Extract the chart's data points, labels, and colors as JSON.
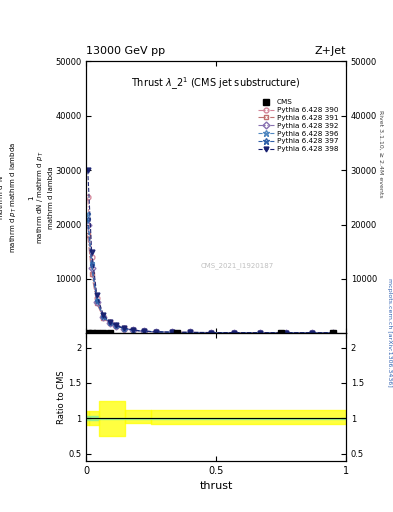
{
  "title_top": "13000 GeV pp",
  "title_right": "Z+Jet",
  "plot_title": "Thrust $\\lambda$_2$^{1}$ (CMS jet substructure)",
  "xlabel": "thrust",
  "ylabel_ratio": "Ratio to CMS",
  "right_label1": "Rivet 3.1.10, ≥ 2.4M events",
  "right_label2": "mcplots.cern.ch [arXiv:1306.3436]",
  "watermark": "CMS_2021_I1920187",
  "legend_entries": [
    {
      "label": "CMS",
      "color": "black",
      "marker": "s",
      "mec": "black",
      "mfc": "black",
      "ls": "none",
      "lw": 0
    },
    {
      "label": "Pythia 6.428 390",
      "color": "#d4869a",
      "marker": "o",
      "mec": "#d4869a",
      "mfc": "none",
      "ls": "-.",
      "lw": 0.8
    },
    {
      "label": "Pythia 6.428 391",
      "color": "#c07070",
      "marker": "s",
      "mec": "#c07070",
      "mfc": "none",
      "ls": "-.",
      "lw": 0.8
    },
    {
      "label": "Pythia 6.428 392",
      "color": "#8870b0",
      "marker": "D",
      "mec": "#8870b0",
      "mfc": "none",
      "ls": "-.",
      "lw": 0.8
    },
    {
      "label": "Pythia 6.428 396",
      "color": "#5088c0",
      "marker": "*",
      "mec": "#5088c0",
      "mfc": "none",
      "ls": "--",
      "lw": 0.8
    },
    {
      "label": "Pythia 6.428 397",
      "color": "#3060a8",
      "marker": "*",
      "mec": "#3060a8",
      "mfc": "none",
      "ls": "--",
      "lw": 0.8
    },
    {
      "label": "Pythia 6.428 398",
      "color": "#182070",
      "marker": "v",
      "mec": "#182070",
      "mfc": "#182070",
      "ls": "--",
      "lw": 0.8
    }
  ],
  "thrust_x": [
    0.005,
    0.02,
    0.04,
    0.065,
    0.09,
    0.115,
    0.145,
    0.18,
    0.22,
    0.27,
    0.33,
    0.4,
    0.48,
    0.57,
    0.67,
    0.77,
    0.87,
    0.95
  ],
  "cms_x": [
    0.005,
    0.02,
    0.04,
    0.065,
    0.09,
    0.35,
    0.75,
    0.95
  ],
  "cms_y": [
    0.2,
    0.2,
    0.2,
    0.2,
    0.2,
    0.2,
    0.2,
    0.2
  ],
  "pythia390_y": [
    25000,
    14000,
    6500,
    3200,
    2000,
    1400,
    900,
    600,
    400,
    280,
    200,
    165,
    145,
    130,
    120,
    115,
    112,
    110
  ],
  "pythia391_y": [
    18000,
    11000,
    5500,
    2900,
    1850,
    1300,
    860,
    580,
    385,
    275,
    198,
    162,
    142,
    128,
    118,
    113,
    110,
    108
  ],
  "pythia392_y": [
    20000,
    12000,
    5800,
    3000,
    1900,
    1340,
    880,
    590,
    390,
    278,
    200,
    163,
    143,
    129,
    119,
    114,
    111,
    109
  ],
  "pythia396_y": [
    22000,
    13000,
    6200,
    3100,
    1950,
    1370,
    890,
    595,
    395,
    280,
    202,
    164,
    144,
    130,
    120,
    115,
    112,
    110
  ],
  "pythia397_y": [
    21000,
    12500,
    6000,
    3050,
    1920,
    1355,
    885,
    592,
    392,
    279,
    201,
    163,
    143,
    129,
    119,
    114,
    111,
    109
  ],
  "pythia398_y": [
    30000,
    15000,
    7000,
    3400,
    2100,
    1450,
    930,
    620,
    410,
    285,
    205,
    167,
    147,
    132,
    122,
    117,
    113,
    111
  ],
  "ylim_main": [
    0,
    50000
  ],
  "yticks_main": [
    10000,
    20000,
    30000,
    40000,
    50000
  ],
  "ytick_labels_main": [
    "10000",
    "20000",
    "30000",
    "40000",
    "50000"
  ],
  "ratio_edges": [
    0.0,
    0.01,
    0.05,
    0.15,
    0.25,
    1.0
  ],
  "green_lo": [
    0.97,
    0.97,
    0.99,
    0.99,
    0.99
  ],
  "green_hi": [
    1.03,
    1.03,
    1.01,
    1.01,
    1.01
  ],
  "yellow_lo": [
    0.9,
    0.9,
    0.75,
    0.93,
    0.92
  ],
  "yellow_hi": [
    1.1,
    1.1,
    1.25,
    1.12,
    1.12
  ],
  "ylim_ratio": [
    0.4,
    2.2
  ],
  "yticks_ratio": [
    0.5,
    1.0,
    1.5,
    2.0
  ],
  "ytick_labels_ratio": [
    "0.5",
    "1",
    "1.5",
    "2"
  ]
}
